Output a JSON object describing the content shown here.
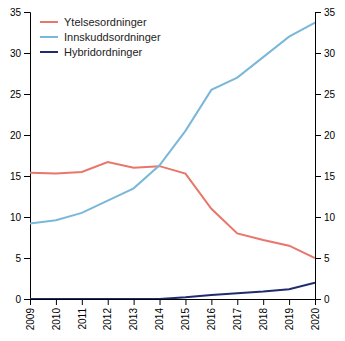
{
  "chart_data": {
    "type": "line",
    "x": [
      2009,
      2010,
      2011,
      2012,
      2013,
      2014,
      2015,
      2016,
      2017,
      2018,
      2019,
      2020
    ],
    "series": [
      {
        "name": "Ytelsesordninger",
        "color": "#e8766a",
        "values": [
          15.4,
          15.3,
          15.5,
          16.7,
          16.0,
          16.2,
          15.3,
          11.0,
          8.0,
          7.2,
          6.5,
          5.0
        ]
      },
      {
        "name": "Innskuddsordninger",
        "color": "#7ab8d9",
        "values": [
          9.2,
          9.6,
          10.5,
          12.0,
          13.5,
          16.3,
          20.5,
          25.5,
          27.0,
          29.5,
          32.0,
          33.7
        ]
      },
      {
        "name": "Hybridordninger",
        "color": "#1f2d6e",
        "values": [
          0.0,
          0.0,
          0.0,
          0.0,
          0.0,
          0.0,
          0.2,
          0.5,
          0.7,
          0.9,
          1.2,
          2.0
        ]
      }
    ],
    "xlim": [
      2009,
      2020
    ],
    "xticks": [
      2009,
      2010,
      2011,
      2012,
      2013,
      2014,
      2015,
      2016,
      2017,
      2018,
      2019,
      2020
    ],
    "ylim": [
      0,
      35
    ],
    "yticks": [
      0,
      5,
      10,
      15,
      20,
      25,
      30,
      35
    ],
    "y2lim": [
      0,
      35
    ],
    "y2ticks": [
      0,
      5,
      10,
      15,
      20,
      25,
      30,
      35
    ],
    "grid": false,
    "legend": "upper left"
  }
}
